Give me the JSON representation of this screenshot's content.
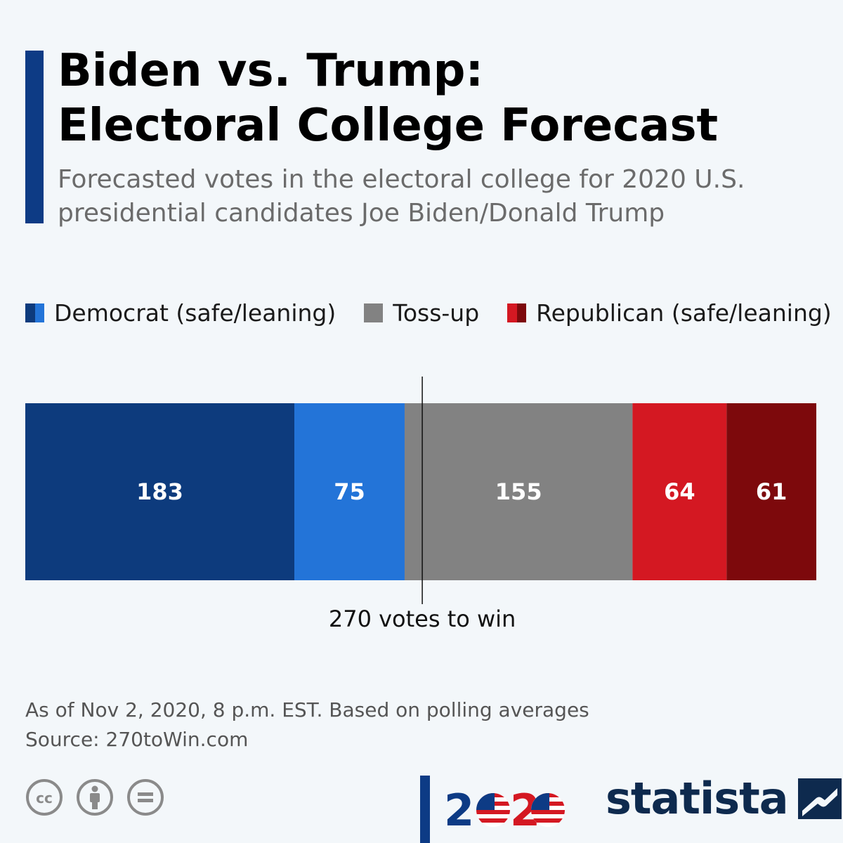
{
  "header": {
    "title_line1": "Biden vs. Trump:",
    "title_line2": "Electoral College Forecast",
    "subtitle_line1": "Forecasted votes in the electoral college for 2020 U.S.",
    "subtitle_line2": "presidential candidates Joe Biden/Donald Trump"
  },
  "legend": {
    "democrat": "Democrat (safe/leaning)",
    "tossup": "Toss-up",
    "republican": "Republican (safe/leaning)"
  },
  "chart_data": {
    "type": "bar",
    "orientation": "horizontal-stacked",
    "title": "Biden vs. Trump: Electoral College Forecast",
    "total": 538,
    "series": [
      {
        "name": "Democrat (safe)",
        "value": 183,
        "color": "#0d3b7d"
      },
      {
        "name": "Democrat (leaning)",
        "value": 75,
        "color": "#2374d8"
      },
      {
        "name": "Toss-up",
        "value": 155,
        "color": "#828282"
      },
      {
        "name": "Republican (leaning)",
        "value": 64,
        "color": "#d41822"
      },
      {
        "name": "Republican (safe)",
        "value": 61,
        "color": "#7d090c"
      }
    ],
    "threshold": {
      "value": 270,
      "label": "270 votes to win"
    }
  },
  "footer": {
    "note": "As of Nov 2, 2020, 8 p.m. EST. Based on polling averages",
    "source": "Source: 270toWin.com",
    "brand": "statista",
    "logo_digit": "2"
  },
  "colors": {
    "accent": "#0d3b85",
    "background": "#f3f7fa",
    "dem_safe": "#0d3b7d",
    "dem_lean": "#2374d8",
    "tossup": "#828282",
    "rep_lean": "#d41822",
    "rep_safe": "#7d090c"
  },
  "icons": [
    "cc-icon",
    "attribution-icon",
    "no-derivatives-icon",
    "us-flag-icon",
    "statista-logo-icon"
  ]
}
